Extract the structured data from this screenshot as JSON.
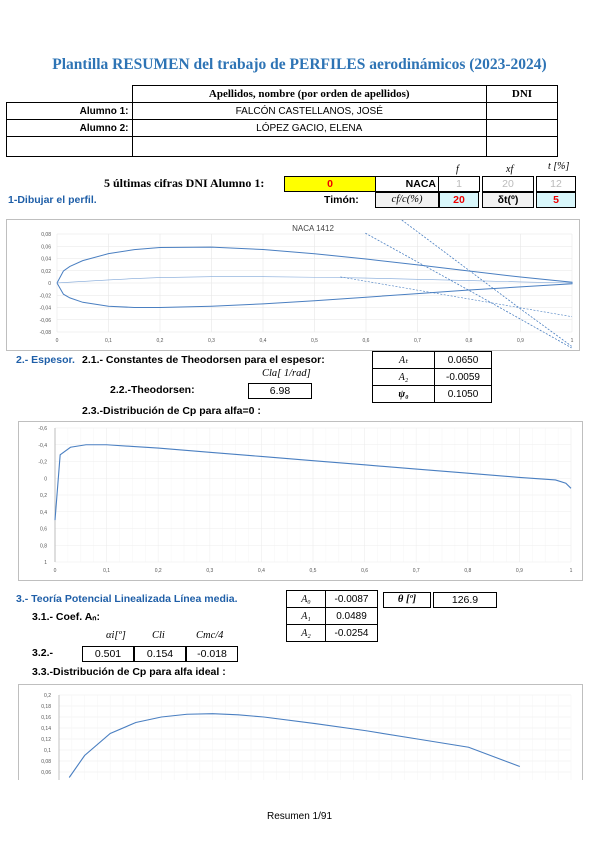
{
  "title": "Plantilla RESUMEN del trabajo de PERFILES aerodinámicos (2023-2024)",
  "students_table": {
    "header_name": "Apellidos, nombre (por orden de apellidos)",
    "header_dni": "DNI",
    "rows": [
      {
        "label": "Alumno 1:",
        "name": "FALCÓN CASTELLANOS, JOSÉ",
        "dni": ""
      },
      {
        "label": "Alumno 2:",
        "name": "LÓPEZ GACIO, ELENA",
        "dni": ""
      }
    ]
  },
  "naca_params": {
    "f_label": "f",
    "xf_label": "xf",
    "t_label": "t [%]",
    "dni_label": "5 últimas cifras DNI Alumno 1:",
    "dni_value": "0",
    "naca_label": "NACA",
    "f_value": "1",
    "xf_value": "20",
    "t_value": "12"
  },
  "section1": {
    "heading": "1-Dibujar el perfil.",
    "timon_label": "Timón:",
    "cf_label": "cf/c(%)",
    "cf_value": "20",
    "delta_label": "δt(º)",
    "delta_value": "5"
  },
  "section2": {
    "heading_num": "2.- Espesor.",
    "heading_sub": "2.1.- Constantes de Theodorsen para el espesor:",
    "cla_label": "Cla[ 1/rad]",
    "theo_label": "2.2.-Theodorsen:",
    "theo_value": "6.98",
    "consts": [
      {
        "label": "Aₜ",
        "value": "0.0650"
      },
      {
        "label": "A₂",
        "value": "-0.0059"
      },
      {
        "label": "ψ₀",
        "value": "0.1050"
      }
    ],
    "dist_label": "2.3.-Distribución de Cp para alfa=0 :"
  },
  "section3": {
    "heading": "3.- Teoría Potencial Linealizada Línea media.",
    "coef_label": "3.1.- Coef. Aₙ:",
    "coefs": [
      {
        "label": "A₀",
        "value": "-0.0087"
      },
      {
        "label": "A₁",
        "value": "0.0489"
      },
      {
        "label": "A₂",
        "value": "-0.0254"
      }
    ],
    "theta_label": "θ [º]",
    "theta_value": "126.9",
    "row32_label": "3.2.-",
    "alpha_label": "αi[º]",
    "alpha_value": "0.501",
    "cli_label": "Cli",
    "cli_value": "0.154",
    "cm_label": "Cmc/4",
    "cm_value": "-0.018",
    "dist_label": "3.3.-Distribución de Cp para alfa ideal :"
  },
  "footer": "Resumen 1/91",
  "chart_data": [
    {
      "type": "line",
      "title": "NACA 1412",
      "xlim": [
        0,
        1
      ],
      "ylim": [
        -0.08,
        0.08
      ],
      "x_ticks": [
        "0",
        "0,1",
        "0,2",
        "0,3",
        "0,4",
        "0,5",
        "0,6",
        "0,7",
        "0,8",
        "0,9",
        "1"
      ],
      "y_ticks": [
        "0,08",
        "0,06",
        "0,04",
        "0,02",
        "0",
        "-0,02",
        "-0,04",
        "-0,06",
        "-0,08"
      ],
      "series": [
        {
          "x": [
            0,
            0.0125,
            0.025,
            0.05,
            0.1,
            0.15,
            0.2,
            0.3,
            0.4,
            0.5,
            0.6,
            0.7,
            0.8,
            0.9,
            1.0
          ],
          "upper": [
            0,
            0.0196,
            0.027,
            0.0365,
            0.0479,
            0.0544,
            0.0579,
            0.0585,
            0.0547,
            0.0478,
            0.0392,
            0.0295,
            0.0196,
            0.0097,
            0.0013
          ],
          "lower": [
            0,
            -0.0183,
            -0.0243,
            -0.0315,
            -0.0379,
            -0.04,
            -0.0401,
            -0.038,
            -0.0341,
            -0.029,
            -0.0232,
            -0.0174,
            -0.0115,
            -0.0063,
            -0.0013
          ]
        }
      ]
    },
    {
      "type": "line",
      "xlim": [
        0,
        1
      ],
      "ylim": [
        -0.6,
        1
      ],
      "x_ticks": [
        "0",
        "0,1",
        "0,2",
        "0,3",
        "0,4",
        "0,5",
        "0,6",
        "0,7",
        "0,8",
        "0,9",
        "1"
      ],
      "y_ticks": [
        "-0,6",
        "-0,4",
        "-0,2",
        "0",
        "0,2",
        "0,4",
        "0,6",
        "0,8",
        "1"
      ],
      "series": [
        {
          "x": [
            0,
            0.01,
            0.03,
            0.06,
            0.1,
            0.15,
            0.2,
            0.3,
            0.4,
            0.5,
            0.6,
            0.7,
            0.8,
            0.9,
            0.97,
            0.99,
            1.0
          ],
          "y": [
            0.5,
            -0.28,
            -0.37,
            -0.4,
            -0.4,
            -0.38,
            -0.36,
            -0.31,
            -0.26,
            -0.21,
            -0.16,
            -0.11,
            -0.06,
            -0.01,
            0.02,
            0.06,
            0.12
          ]
        }
      ]
    },
    {
      "type": "line",
      "xlim": [
        0,
        1
      ],
      "ylim": [
        0,
        0.2
      ],
      "y_ticks": [
        "0,2",
        "0,18",
        "0,16",
        "0,14",
        "0,12",
        "0,1",
        "0,08",
        "0,06"
      ],
      "series": [
        {
          "x": [
            0.02,
            0.05,
            0.1,
            0.15,
            0.2,
            0.25,
            0.3,
            0.35,
            0.4,
            0.5,
            0.6,
            0.7,
            0.8,
            0.9
          ],
          "y": [
            0.05,
            0.09,
            0.13,
            0.15,
            0.16,
            0.165,
            0.166,
            0.164,
            0.16,
            0.148,
            0.135,
            0.12,
            0.105,
            0.07
          ]
        }
      ]
    }
  ]
}
